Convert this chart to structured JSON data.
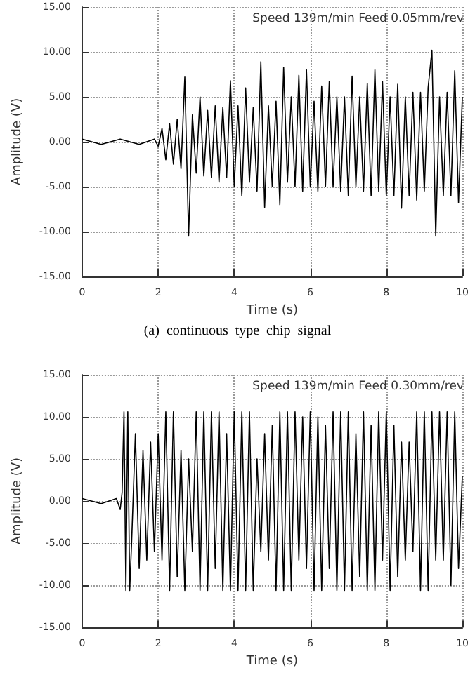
{
  "chart_data": [
    {
      "type": "line",
      "xlabel": "Time (s)",
      "ylabel": "Amplitude (V)",
      "annotations": [
        "Speed 139m/min Feed 0.05mm/rev",
        "(a)  continuous  type  chip  signal"
      ],
      "xlim": [
        0,
        10
      ],
      "xticks": [
        0,
        2,
        4,
        6,
        8,
        10
      ],
      "ylim": [
        -15,
        15
      ],
      "yticks": [
        {
          "value": -15,
          "label": "-15.00"
        },
        {
          "value": -10,
          "label": "-10.00"
        },
        {
          "value": -5,
          "label": "-5.00"
        },
        {
          "value": 0,
          "label": "0.00"
        },
        {
          "value": 5,
          "label": "5.00"
        },
        {
          "value": 10,
          "label": "10.00"
        },
        {
          "value": 15,
          "label": "15.00"
        }
      ],
      "grid": true,
      "marker": "none",
      "line_style": "solid",
      "series": [
        {
          "color": "#000000",
          "x": [
            0,
            0.5,
            1,
            1.5,
            1.9,
            2.0,
            2.1,
            2.2,
            2.3,
            2.4,
            2.5,
            2.6,
            2.7,
            2.8,
            2.9,
            3.0,
            3.1,
            3.2,
            3.3,
            3.4,
            3.5,
            3.6,
            3.7,
            3.8,
            3.9,
            4.0,
            4.1,
            4.2,
            4.3,
            4.4,
            4.5,
            4.6,
            4.7,
            4.8,
            4.9,
            5.0,
            5.1,
            5.2,
            5.3,
            5.4,
            5.5,
            5.6,
            5.7,
            5.8,
            5.9,
            6.0,
            6.1,
            6.2,
            6.3,
            6.4,
            6.5,
            6.6,
            6.7,
            6.8,
            6.9,
            7.0,
            7.1,
            7.2,
            7.3,
            7.4,
            7.5,
            7.6,
            7.7,
            7.8,
            7.9,
            8.0,
            8.1,
            8.2,
            8.3,
            8.4,
            8.5,
            8.6,
            8.7,
            8.8,
            8.9,
            9.0,
            9.1,
            9.2,
            9.3,
            9.4,
            9.5,
            9.6,
            9.7,
            9.8,
            9.9,
            10.0
          ],
          "values": [
            0.3,
            -0.3,
            0.3,
            -0.3,
            0.3,
            -0.5,
            1.5,
            -2,
            2,
            -2.5,
            2.5,
            -3,
            7.2,
            -10.5,
            3,
            -3.5,
            5,
            -3.8,
            3.5,
            -4,
            4,
            -4.5,
            3.8,
            -4,
            6.8,
            -5,
            4,
            -6,
            6,
            -4.5,
            3.8,
            -5.5,
            8.9,
            -7.3,
            4,
            -5,
            4.5,
            -7,
            8.3,
            -4.5,
            5,
            -5,
            7.4,
            -5.5,
            8,
            -5,
            4.5,
            -5.5,
            6.2,
            -5,
            6.7,
            -5,
            5,
            -5.5,
            5,
            -6,
            7.3,
            -5,
            5,
            -5.5,
            6.5,
            -6,
            8,
            -5.5,
            6.7,
            -6,
            5,
            -6,
            6.4,
            -7.4,
            5,
            -6,
            5.5,
            -6.5,
            5.5,
            -5.5,
            6,
            10.2,
            -10.5,
            5,
            -6,
            5.5,
            -6,
            7.9,
            -6.8,
            5
          ]
        }
      ]
    },
    {
      "type": "line",
      "xlabel": "Time (s)",
      "ylabel": "Amplitude (V)",
      "annotations": [
        "Speed 139m/min Feed 0.30mm/rev"
      ],
      "xlim": [
        0,
        10
      ],
      "xticks": [
        0,
        2,
        4,
        6,
        8,
        10
      ],
      "ylim": [
        -15,
        15
      ],
      "yticks": [
        {
          "value": -15,
          "label": "-15.00"
        },
        {
          "value": -10,
          "label": "-10.00"
        },
        {
          "value": -5,
          "label": "-5.00"
        },
        {
          "value": 0,
          "label": "0.00"
        },
        {
          "value": 5,
          "label": "5.00"
        },
        {
          "value": 10,
          "label": "10.00"
        },
        {
          "value": 15,
          "label": "15.00"
        }
      ],
      "grid": true,
      "marker": "none",
      "line_style": "solid",
      "series": [
        {
          "color": "#000000",
          "x": [
            0,
            0.5,
            0.9,
            1.0,
            1.05,
            1.1,
            1.15,
            1.2,
            1.25,
            1.3,
            1.4,
            1.5,
            1.6,
            1.7,
            1.8,
            1.9,
            2.0,
            2.1,
            2.2,
            2.3,
            2.4,
            2.5,
            2.6,
            2.7,
            2.8,
            2.9,
            3.0,
            3.1,
            3.2,
            3.3,
            3.4,
            3.5,
            3.6,
            3.7,
            3.8,
            3.9,
            4.0,
            4.1,
            4.2,
            4.3,
            4.4,
            4.5,
            4.6,
            4.7,
            4.8,
            4.9,
            5.0,
            5.1,
            5.2,
            5.3,
            5.4,
            5.5,
            5.6,
            5.7,
            5.8,
            5.9,
            6.0,
            6.1,
            6.2,
            6.3,
            6.4,
            6.5,
            6.6,
            6.7,
            6.8,
            6.9,
            7.0,
            7.1,
            7.2,
            7.3,
            7.4,
            7.5,
            7.6,
            7.7,
            7.8,
            7.9,
            8.0,
            8.1,
            8.2,
            8.3,
            8.4,
            8.5,
            8.6,
            8.7,
            8.8,
            8.9,
            9.0,
            9.1,
            9.2,
            9.3,
            9.4,
            9.5,
            9.6,
            9.7,
            9.8,
            9.9,
            10.0
          ],
          "values": [
            0.3,
            -0.3,
            0.3,
            -1,
            1,
            10.6,
            -10.6,
            10.6,
            -10.6,
            -5,
            8,
            -8,
            6,
            -7,
            7,
            -6,
            8,
            -7,
            10.6,
            -10.6,
            10.6,
            -9,
            6,
            -10.6,
            5,
            -6,
            10.6,
            -10.6,
            10.6,
            -10.6,
            10.6,
            -8,
            10.6,
            -10.6,
            8,
            -10.6,
            10.6,
            -10.6,
            10.6,
            -10.6,
            10.6,
            -10.6,
            5,
            -6,
            8,
            -7,
            9,
            -10.6,
            10.6,
            -10.6,
            10.6,
            -10.6,
            10.6,
            -7,
            10,
            -8,
            10.6,
            -10.6,
            10,
            -10.6,
            9,
            -8,
            10.6,
            -10.6,
            10.6,
            -10.6,
            10.6,
            -10.6,
            8,
            -9,
            10.6,
            -10.6,
            9,
            -10.6,
            10.6,
            -7,
            10.6,
            -10.6,
            9,
            -9,
            7,
            -7,
            7,
            -6,
            10.6,
            -10.6,
            10.6,
            -10.6,
            10.6,
            -7,
            10.6,
            -7,
            10.6,
            -10,
            10.6,
            -8,
            3
          ]
        }
      ]
    }
  ]
}
